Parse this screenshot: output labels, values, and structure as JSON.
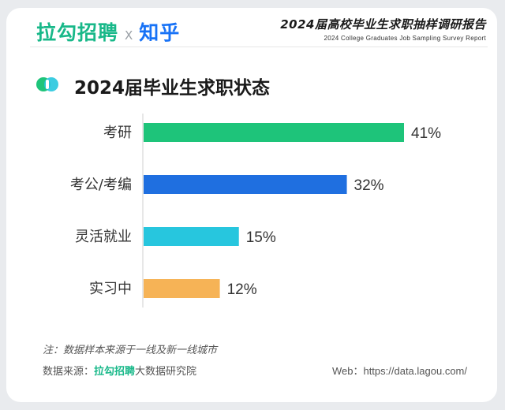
{
  "header": {
    "logo_lagou": "拉勾招聘",
    "logo_separator": "X",
    "logo_zhihu": "知乎",
    "report_title": "2024届高校毕业生求职抽样调研报告",
    "report_subtitle": "2024 College Graduates Job Sampling Survey Report"
  },
  "section": {
    "title": "2024届毕业生求职状态"
  },
  "chart_data": {
    "type": "bar",
    "orientation": "horizontal",
    "categories": [
      "考研",
      "考公/考编",
      "灵活就业",
      "实习中"
    ],
    "values": [
      41,
      32,
      15,
      12
    ],
    "value_labels": [
      "41%",
      "32%",
      "15%",
      "12%"
    ],
    "colors": [
      "#1ec47a",
      "#1f6fe0",
      "#27c6de",
      "#f6b356"
    ],
    "xlim": [
      0,
      41
    ],
    "grid": false,
    "legend": "none"
  },
  "footer": {
    "note": "注：数据样本来源于一线及新一线城市",
    "source_prefix": "数据来源：",
    "source_brand": "拉勾招聘",
    "source_suffix": "大数据研究院",
    "web": "Web：https://data.lagou.com/"
  },
  "colors": {
    "lagou_green": "#18b889",
    "zhihu_blue": "#1772f6"
  }
}
